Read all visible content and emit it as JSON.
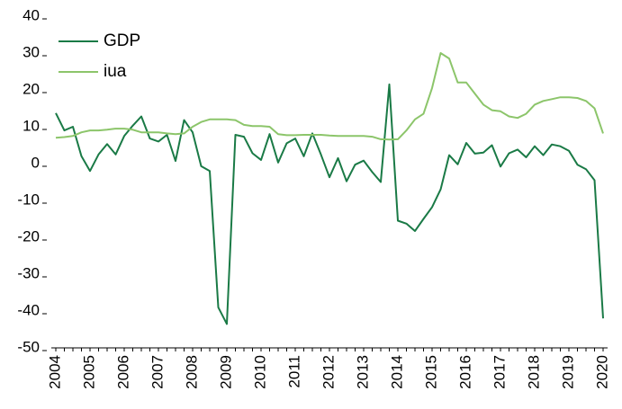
{
  "chart_data": {
    "type": "line",
    "categories": [
      "2004",
      null,
      null,
      null,
      "2005",
      null,
      null,
      null,
      "2006",
      null,
      null,
      null,
      "2007",
      null,
      null,
      null,
      "2008",
      null,
      null,
      null,
      "2009",
      null,
      null,
      null,
      "2010",
      null,
      null,
      null,
      "2011",
      null,
      null,
      null,
      "2012",
      null,
      null,
      null,
      "2013",
      null,
      null,
      null,
      "2014",
      null,
      null,
      null,
      "2015",
      null,
      null,
      null,
      "2016",
      null,
      null,
      null,
      "2017",
      null,
      null,
      null,
      "2018",
      null,
      null,
      null,
      "2019",
      null,
      null,
      null,
      "2020"
    ],
    "series": [
      {
        "name": "GDP",
        "color": "#1a7a46",
        "values": [
          13.7,
          9,
          10,
          2,
          -2,
          2.5,
          5.3,
          2.5,
          7.5,
          10.3,
          12.8,
          6.8,
          6,
          7.8,
          0.7,
          11.8,
          8.5,
          -0.7,
          -2,
          -39,
          -43.5,
          7.8,
          7.3,
          2.8,
          1,
          8,
          0.3,
          5.5,
          6.8,
          2,
          8.2,
          2.5,
          -3.7,
          1.5,
          -4.8,
          -0.3,
          0.8,
          -2.3,
          -5,
          21.5,
          -15.5,
          -16.3,
          -18.3,
          -15,
          -11.8,
          -7,
          2.3,
          -0.2,
          5.6,
          2.7,
          3,
          5,
          -0.8,
          2.8,
          3.8,
          1.7,
          4.7,
          2.3,
          5.2,
          4.7,
          3.5,
          -0.3,
          -1.5,
          -4.5,
          -42
        ]
      },
      {
        "name": "iua",
        "color": "#8cc56a",
        "values": [
          7,
          7.2,
          7.5,
          8.5,
          9,
          9,
          9.2,
          9.5,
          9.5,
          9.2,
          8.5,
          8.5,
          8.5,
          8.2,
          8,
          8.2,
          10,
          11.3,
          12,
          12,
          12,
          11.8,
          10.5,
          10.2,
          10.2,
          10,
          8,
          7.7,
          7.7,
          7.8,
          7.8,
          7.8,
          7.6,
          7.5,
          7.5,
          7.5,
          7.5,
          7.3,
          6.6,
          6.5,
          6.6,
          9,
          12,
          13.5,
          20.5,
          30,
          28.5,
          22,
          22,
          19,
          16,
          14.5,
          14.2,
          12.8,
          12.4,
          13.5,
          16,
          17,
          17.5,
          18,
          18,
          17.8,
          17,
          15,
          8.2
        ]
      }
    ],
    "ylim": [
      -50,
      40
    ],
    "yticks": [
      -50,
      -40,
      -30,
      -20,
      -10,
      0,
      10,
      20,
      30,
      40
    ],
    "grid": false,
    "legend": "upper-left"
  }
}
